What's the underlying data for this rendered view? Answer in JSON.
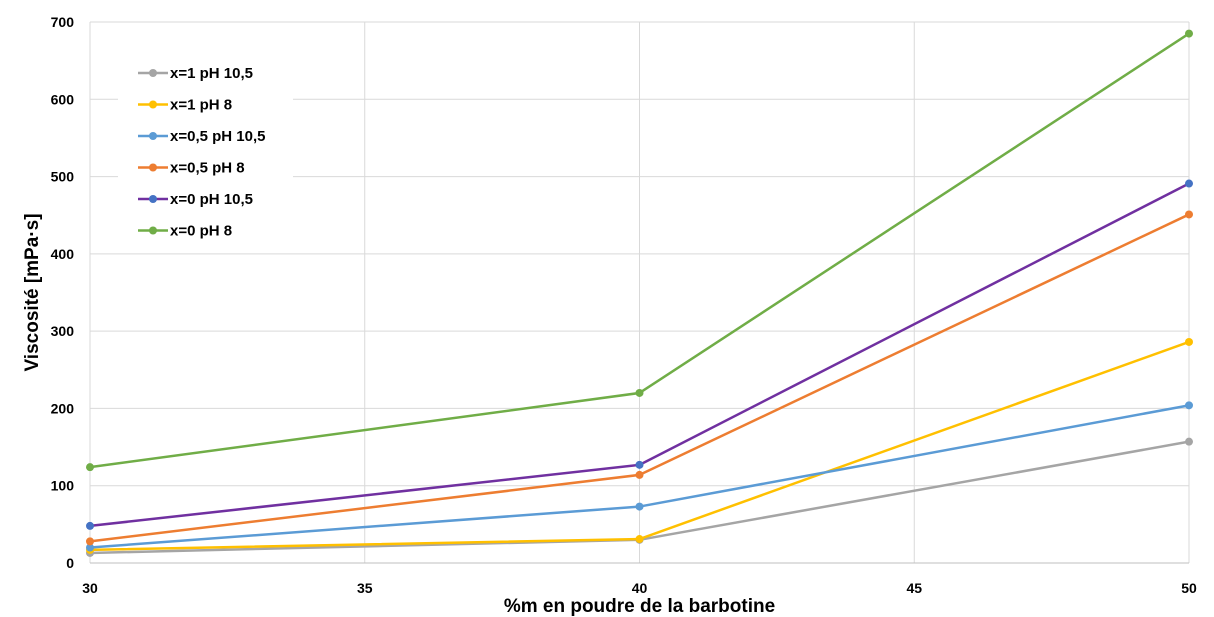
{
  "chart_data": {
    "type": "line",
    "title": "",
    "xlabel": "%m en poudre de la barbotine",
    "ylabel": "Viscosité [mPa·s]",
    "xlim": [
      30,
      50
    ],
    "ylim": [
      0,
      700
    ],
    "x_ticks": [
      30,
      35,
      40,
      45,
      50
    ],
    "y_ticks": [
      0,
      100,
      200,
      300,
      400,
      500,
      600,
      700
    ],
    "grid": true,
    "legend_position": "top-left",
    "series": [
      {
        "name": "x=1 pH 10,5",
        "color": "#A5A5A5",
        "marker_color": "#A5A5A5",
        "x": [
          30,
          40,
          50
        ],
        "y": [
          13,
          30,
          157
        ]
      },
      {
        "name": "x=1 pH 8",
        "color": "#FFC000",
        "marker_color": "#FFC000",
        "x": [
          30,
          40,
          50
        ],
        "y": [
          17,
          31,
          286
        ]
      },
      {
        "name": "x=0,5 pH 10,5",
        "color": "#5B9BD5",
        "marker_color": "#5B9BD5",
        "x": [
          30,
          40,
          50
        ],
        "y": [
          20,
          73,
          204
        ]
      },
      {
        "name": "x=0,5 pH 8",
        "color": "#ED7D31",
        "marker_color": "#ED7D31",
        "x": [
          30,
          40,
          50
        ],
        "y": [
          28,
          114,
          451
        ]
      },
      {
        "name": "x=0 pH 10,5",
        "color": "#7030A0",
        "marker_color": "#4472C4",
        "x": [
          30,
          40,
          50
        ],
        "y": [
          48,
          127,
          491
        ]
      },
      {
        "name": "x=0 pH 8",
        "color": "#70AD47",
        "marker_color": "#70AD47",
        "x": [
          30,
          40,
          50
        ],
        "y": [
          124,
          220,
          685
        ]
      }
    ]
  }
}
